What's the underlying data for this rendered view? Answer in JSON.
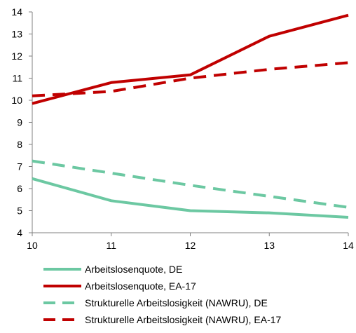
{
  "chart_data": {
    "type": "line",
    "x": [
      10,
      11,
      12,
      13,
      14
    ],
    "xlim": [
      10,
      14
    ],
    "ylim": [
      4,
      14
    ],
    "yticks": [
      4,
      5,
      6,
      7,
      8,
      9,
      10,
      11,
      12,
      13,
      14
    ],
    "xticks": [
      10,
      11,
      12,
      13,
      14
    ],
    "grid": false,
    "legend_position": "bottom",
    "series": [
      {
        "name": "Arbeitslosenquote, DE",
        "values": [
          6.45,
          5.45,
          5.0,
          4.9,
          4.7
        ],
        "color": "#6cc8a2",
        "style": "solid"
      },
      {
        "name": "Arbeitslosenquote, EA-17",
        "values": [
          9.85,
          10.8,
          11.15,
          12.9,
          13.85
        ],
        "color": "#c00000",
        "style": "solid"
      },
      {
        "name": "Strukturelle Arbeitslosigkeit (NAWRU), DE",
        "values": [
          7.25,
          6.7,
          6.15,
          5.65,
          5.15
        ],
        "color": "#6cc8a2",
        "style": "dashed"
      },
      {
        "name": "Strukturelle Arbeitslosigkeit (NAWRU), EA-17",
        "values": [
          10.2,
          10.4,
          11.0,
          11.4,
          11.7
        ],
        "color": "#c00000",
        "style": "dashed"
      }
    ]
  }
}
